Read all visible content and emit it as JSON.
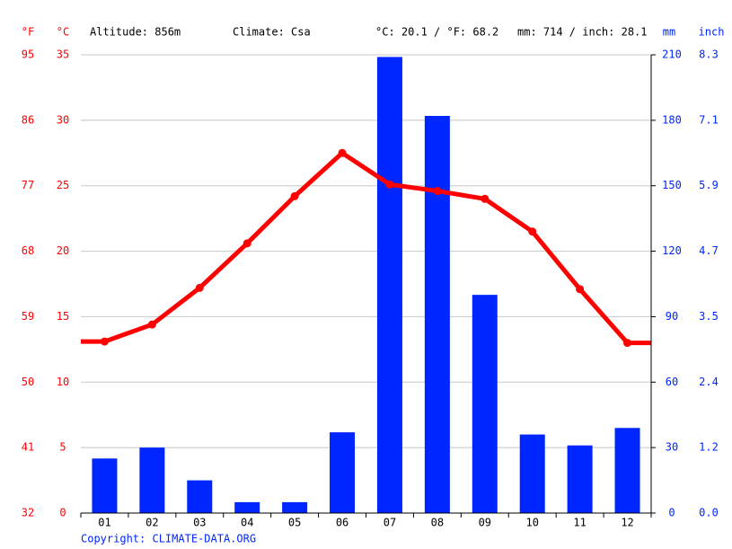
{
  "chart_data": {
    "type": "combo",
    "units": {
      "f": "°F",
      "c": "°C",
      "mm": "mm",
      "inch": "inch"
    },
    "info": [
      "Altitude: 856m",
      "Climate: Csa",
      "°C: 20.1 / °F: 68.2",
      "mm: 714 / inch: 28.1"
    ],
    "copyright": "Copyright: CLIMATE-DATA.ORG",
    "categories": [
      "01",
      "02",
      "03",
      "04",
      "05",
      "06",
      "07",
      "08",
      "09",
      "10",
      "11",
      "12"
    ],
    "series": [
      {
        "type": "bar",
        "axis": "y2",
        "color": "#0026ff",
        "values": [
          25,
          30,
          15,
          5,
          5,
          37,
          209,
          182,
          100,
          36,
          31,
          39
        ]
      },
      {
        "type": "line",
        "axis": "y",
        "color": "#ff0000",
        "values": [
          13.1,
          14.4,
          17.2,
          20.6,
          24.2,
          27.5,
          25.1,
          24.6,
          24.0,
          21.5,
          17.1,
          13.0
        ]
      }
    ],
    "ylim": [
      0,
      35
    ],
    "yticks": [
      0,
      5,
      10,
      15,
      20,
      25,
      30,
      35
    ],
    "yticks_f": [
      {
        "value": 0,
        "label": "32"
      },
      {
        "value": 5,
        "label": "41"
      },
      {
        "value": 10,
        "label": "50"
      },
      {
        "value": 15,
        "label": "59"
      },
      {
        "value": 20,
        "label": "68"
      },
      {
        "value": 25,
        "label": "77"
      },
      {
        "value": 30,
        "label": "86"
      },
      {
        "value": 35,
        "label": "95"
      }
    ],
    "y2lim": [
      0,
      210
    ],
    "y2ticks": [
      0,
      30,
      60,
      90,
      120,
      150,
      180,
      210
    ],
    "y2ticks_inch": [
      {
        "value": 0,
        "label": "0.0"
      },
      {
        "value": 30,
        "label": "1.2"
      },
      {
        "value": 60,
        "label": "2.4"
      },
      {
        "value": 90,
        "label": "3.5"
      },
      {
        "value": 120,
        "label": "4.7"
      },
      {
        "value": 150,
        "label": "5.9"
      },
      {
        "value": 180,
        "label": "7.1"
      },
      {
        "value": 210,
        "label": "8.3"
      }
    ],
    "grid": true
  }
}
